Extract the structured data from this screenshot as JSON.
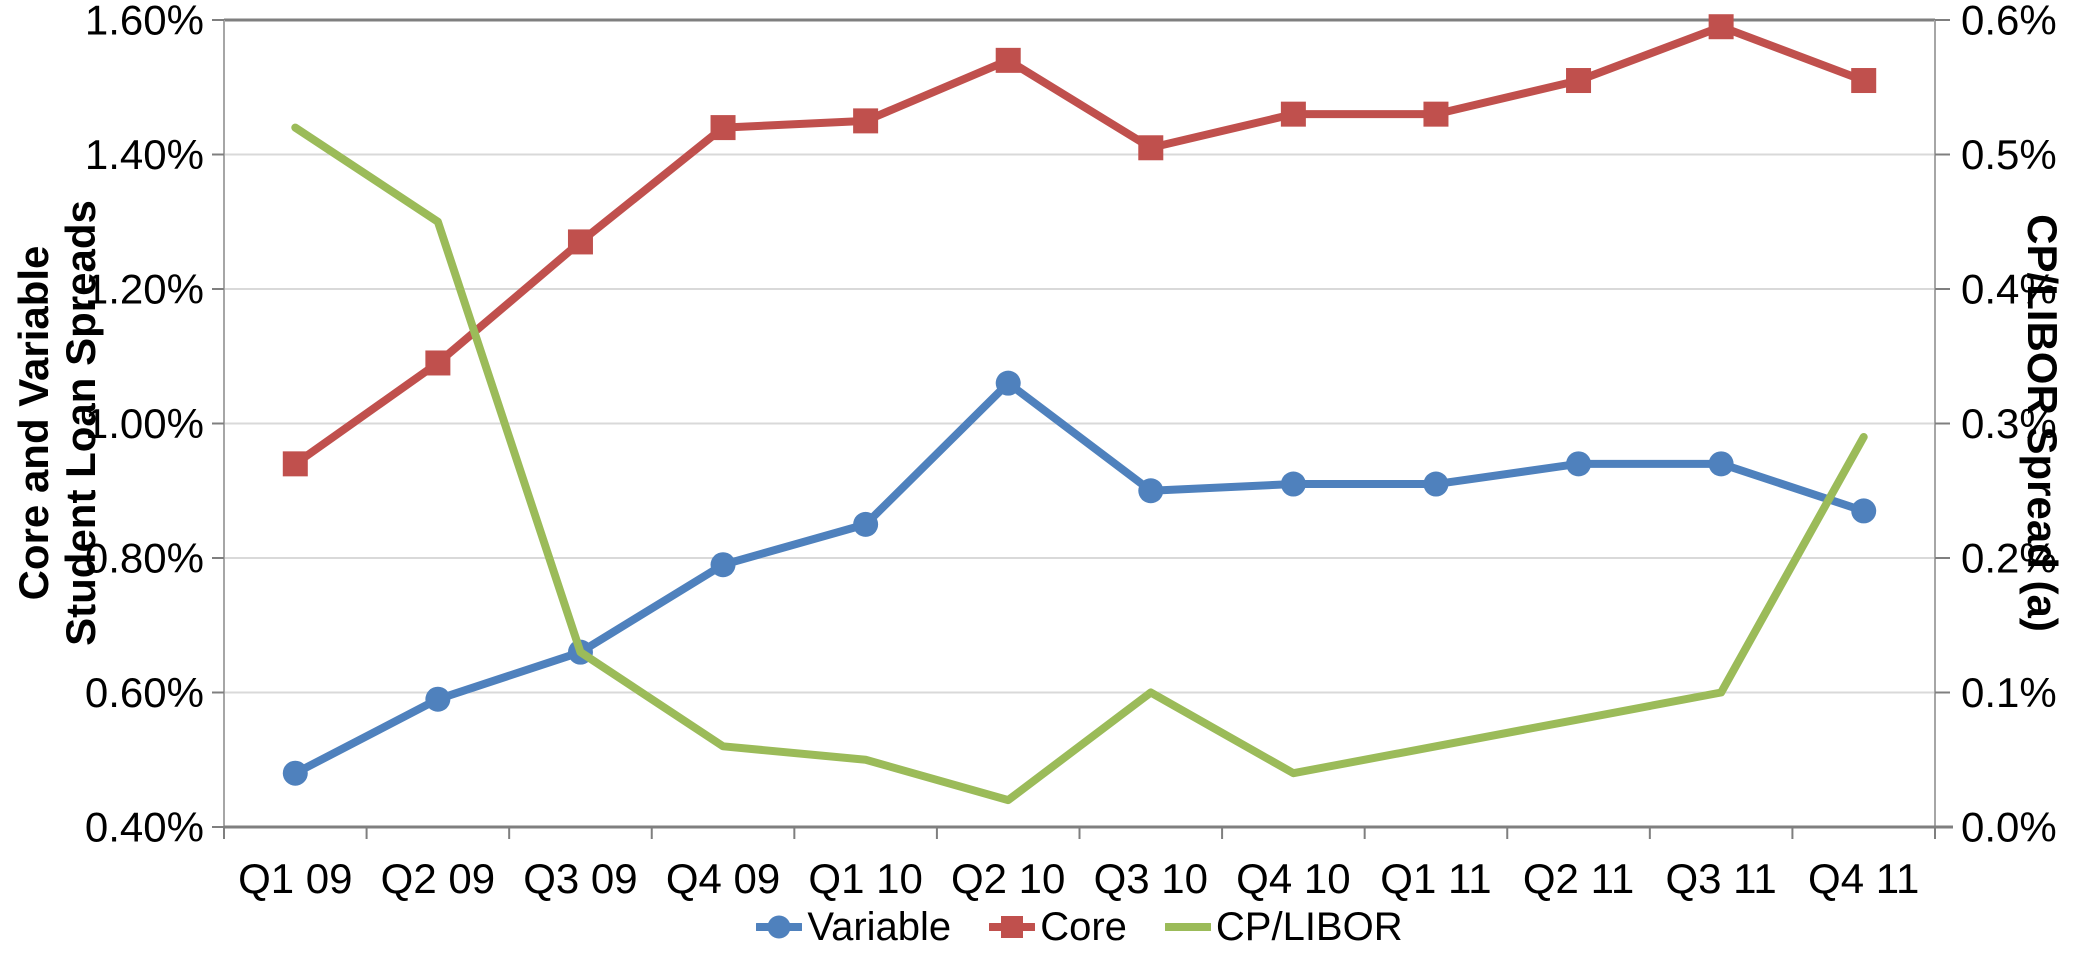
{
  "chart_data": {
    "type": "line",
    "title": "",
    "categories": [
      "Q1 09",
      "Q2 09",
      "Q3 09",
      "Q4 09",
      "Q1 10",
      "Q2 10",
      "Q3 10",
      "Q4 10",
      "Q1 11",
      "Q2 11",
      "Q3 11",
      "Q4 11"
    ],
    "series": [
      {
        "name": "Variable",
        "axis": "left",
        "color": "#4F81BD",
        "marker": "circle",
        "values": [
          0.48,
          0.59,
          0.66,
          0.79,
          0.85,
          1.06,
          0.9,
          0.91,
          0.91,
          0.94,
          0.94,
          0.87
        ]
      },
      {
        "name": "Core",
        "axis": "left",
        "color": "#C0504D",
        "marker": "square",
        "values": [
          0.94,
          1.09,
          1.27,
          1.44,
          1.45,
          1.54,
          1.41,
          1.46,
          1.46,
          1.51,
          1.59,
          1.51
        ]
      },
      {
        "name": "CP/LIBOR",
        "axis": "right",
        "color": "#9BBB59",
        "marker": "none",
        "values": [
          0.52,
          0.45,
          0.13,
          0.06,
          0.05,
          0.02,
          0.1,
          0.04,
          0.06,
          0.08,
          0.1,
          0.29
        ]
      }
    ],
    "left_axis": {
      "title_line1": "Core and Variable",
      "title_line2": "Student Loan Spreads",
      "min": 0.4,
      "max": 1.6,
      "step": 0.2,
      "tick_labels": [
        "0.40%",
        "0.60%",
        "0.80%",
        "1.00%",
        "1.20%",
        "1.40%",
        "1.60%"
      ]
    },
    "right_axis": {
      "title": "CP/LIBOR Spread (a)",
      "min": 0.0,
      "max": 0.6,
      "step": 0.1,
      "tick_labels": [
        "0.0%",
        "0.1%",
        "0.2%",
        "0.3%",
        "0.4%",
        "0.5%",
        "0.6%"
      ]
    },
    "grid": true,
    "legend_position": "bottom",
    "colors": {
      "gridline": "#D9D9D9",
      "axis_line": "#7F7F7F",
      "plot_side_border": "#A6A6A6",
      "text": "#000000"
    }
  }
}
